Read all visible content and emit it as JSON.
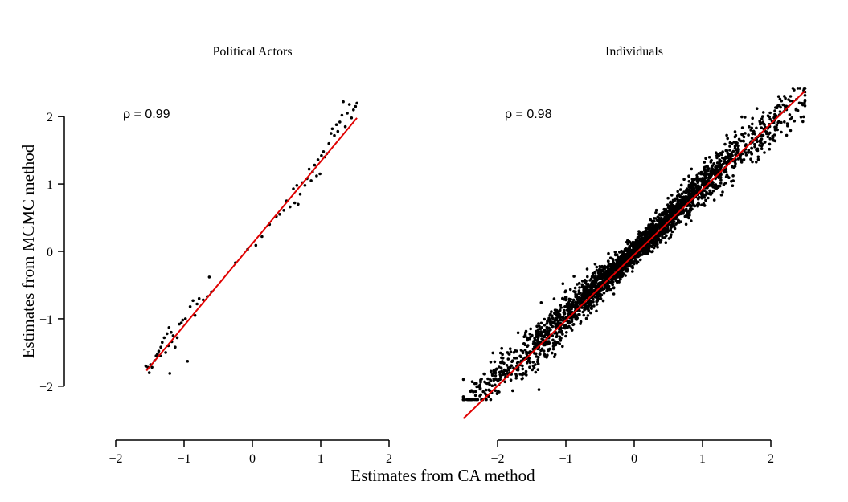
{
  "figure": {
    "xlabel": "Estimates from CA method",
    "ylabel": "Estimates from MCMC method",
    "colors": {
      "points": "#000000",
      "fit_line": "#e00000",
      "axes": "#000000"
    }
  },
  "chart_data": [
    {
      "type": "scatter",
      "title": "Political Actors",
      "annotation": "ρ = 0.99",
      "xlim": [
        -2,
        2
      ],
      "ylim": [
        -2.55,
        2.55
      ],
      "x_ticks": [
        -2,
        -1,
        0,
        1,
        2
      ],
      "x_tick_labels": [
        "−2",
        "−1",
        "0",
        "1",
        "2"
      ],
      "y_ticks": [
        -2,
        -1,
        0,
        1,
        2
      ],
      "y_tick_labels": [
        "−2",
        "−1",
        "0",
        "1",
        "2"
      ],
      "grid": false,
      "fit_line": {
        "x": [
          -1.55,
          1.53
        ],
        "y": [
          -1.77,
          1.98
        ]
      },
      "points": [
        [
          -1.56,
          -1.7
        ],
        [
          -1.53,
          -1.72
        ],
        [
          -1.51,
          -1.8
        ],
        [
          -1.49,
          -1.68
        ],
        [
          -1.47,
          -1.72
        ],
        [
          -1.43,
          -1.62
        ],
        [
          -1.41,
          -1.55
        ],
        [
          -1.39,
          -1.52
        ],
        [
          -1.37,
          -1.48
        ],
        [
          -1.35,
          -1.55
        ],
        [
          -1.34,
          -1.42
        ],
        [
          -1.32,
          -1.35
        ],
        [
          -1.29,
          -1.28
        ],
        [
          -1.27,
          -1.5
        ],
        [
          -1.25,
          -1.22
        ],
        [
          -1.23,
          -1.4
        ],
        [
          -1.22,
          -1.13
        ],
        [
          -1.21,
          -1.81
        ],
        [
          -1.19,
          -1.2
        ],
        [
          -1.18,
          -1.34
        ],
        [
          -1.16,
          -1.25
        ],
        [
          -1.13,
          -1.42
        ],
        [
          -1.1,
          -1.28
        ],
        [
          -1.07,
          -1.08
        ],
        [
          -1.04,
          -1.06
        ],
        [
          -1.02,
          -1.02
        ],
        [
          -0.98,
          -1.0
        ],
        [
          -0.95,
          -1.63
        ],
        [
          -0.91,
          -0.82
        ],
        [
          -0.87,
          -0.73
        ],
        [
          -0.84,
          -0.95
        ],
        [
          -0.81,
          -0.78
        ],
        [
          -0.78,
          -0.7
        ],
        [
          -0.72,
          -0.72
        ],
        [
          -0.66,
          -0.67
        ],
        [
          -0.63,
          -0.38
        ],
        [
          -0.6,
          -0.6
        ],
        [
          -0.25,
          -0.17
        ],
        [
          -0.07,
          0.03
        ],
        [
          0.05,
          0.09
        ],
        [
          0.14,
          0.22
        ],
        [
          0.25,
          0.4
        ],
        [
          0.35,
          0.52
        ],
        [
          0.4,
          0.55
        ],
        [
          0.46,
          0.61
        ],
        [
          0.5,
          0.75
        ],
        [
          0.55,
          0.66
        ],
        [
          0.6,
          0.93
        ],
        [
          0.62,
          0.72
        ],
        [
          0.65,
          0.98
        ],
        [
          0.67,
          0.7
        ],
        [
          0.7,
          0.85
        ],
        [
          0.73,
          1.02
        ],
        [
          0.77,
          0.98
        ],
        [
          0.8,
          1.08
        ],
        [
          0.83,
          1.22
        ],
        [
          0.86,
          1.05
        ],
        [
          0.88,
          1.18
        ],
        [
          0.91,
          1.28
        ],
        [
          0.94,
          1.12
        ],
        [
          0.96,
          1.36
        ],
        [
          0.99,
          1.15
        ],
        [
          1.01,
          1.42
        ],
        [
          1.04,
          1.48
        ],
        [
          1.06,
          1.4
        ],
        [
          1.09,
          1.45
        ],
        [
          1.12,
          1.6
        ],
        [
          1.15,
          1.75
        ],
        [
          1.17,
          1.82
        ],
        [
          1.2,
          1.72
        ],
        [
          1.23,
          1.88
        ],
        [
          1.25,
          1.78
        ],
        [
          1.28,
          1.92
        ],
        [
          1.31,
          2.02
        ],
        [
          1.33,
          2.22
        ],
        [
          1.36,
          1.85
        ],
        [
          1.39,
          2.05
        ],
        [
          1.42,
          2.18
        ],
        [
          1.45,
          1.98
        ],
        [
          1.48,
          2.1
        ],
        [
          1.51,
          2.15
        ],
        [
          1.53,
          2.2
        ]
      ]
    },
    {
      "type": "scatter",
      "title": "Individuals",
      "annotation": "ρ = 0.98",
      "xlim": [
        -2,
        2
      ],
      "ylim": [
        -2.55,
        2.55
      ],
      "x_ticks": [
        -2,
        -1,
        0,
        1,
        2
      ],
      "x_tick_labels": [
        "−2",
        "−1",
        "0",
        "1",
        "2"
      ],
      "grid": false,
      "fit_line": {
        "x": [
          -2.5,
          2.5
        ],
        "y": [
          -2.48,
          2.38
        ]
      },
      "point_cloud": {
        "count": 2800,
        "x_range": [
          -2.5,
          2.5
        ],
        "y_range": [
          -2.2,
          2.4
        ],
        "relationship": "approximately y = x"
      },
      "points": []
    }
  ]
}
